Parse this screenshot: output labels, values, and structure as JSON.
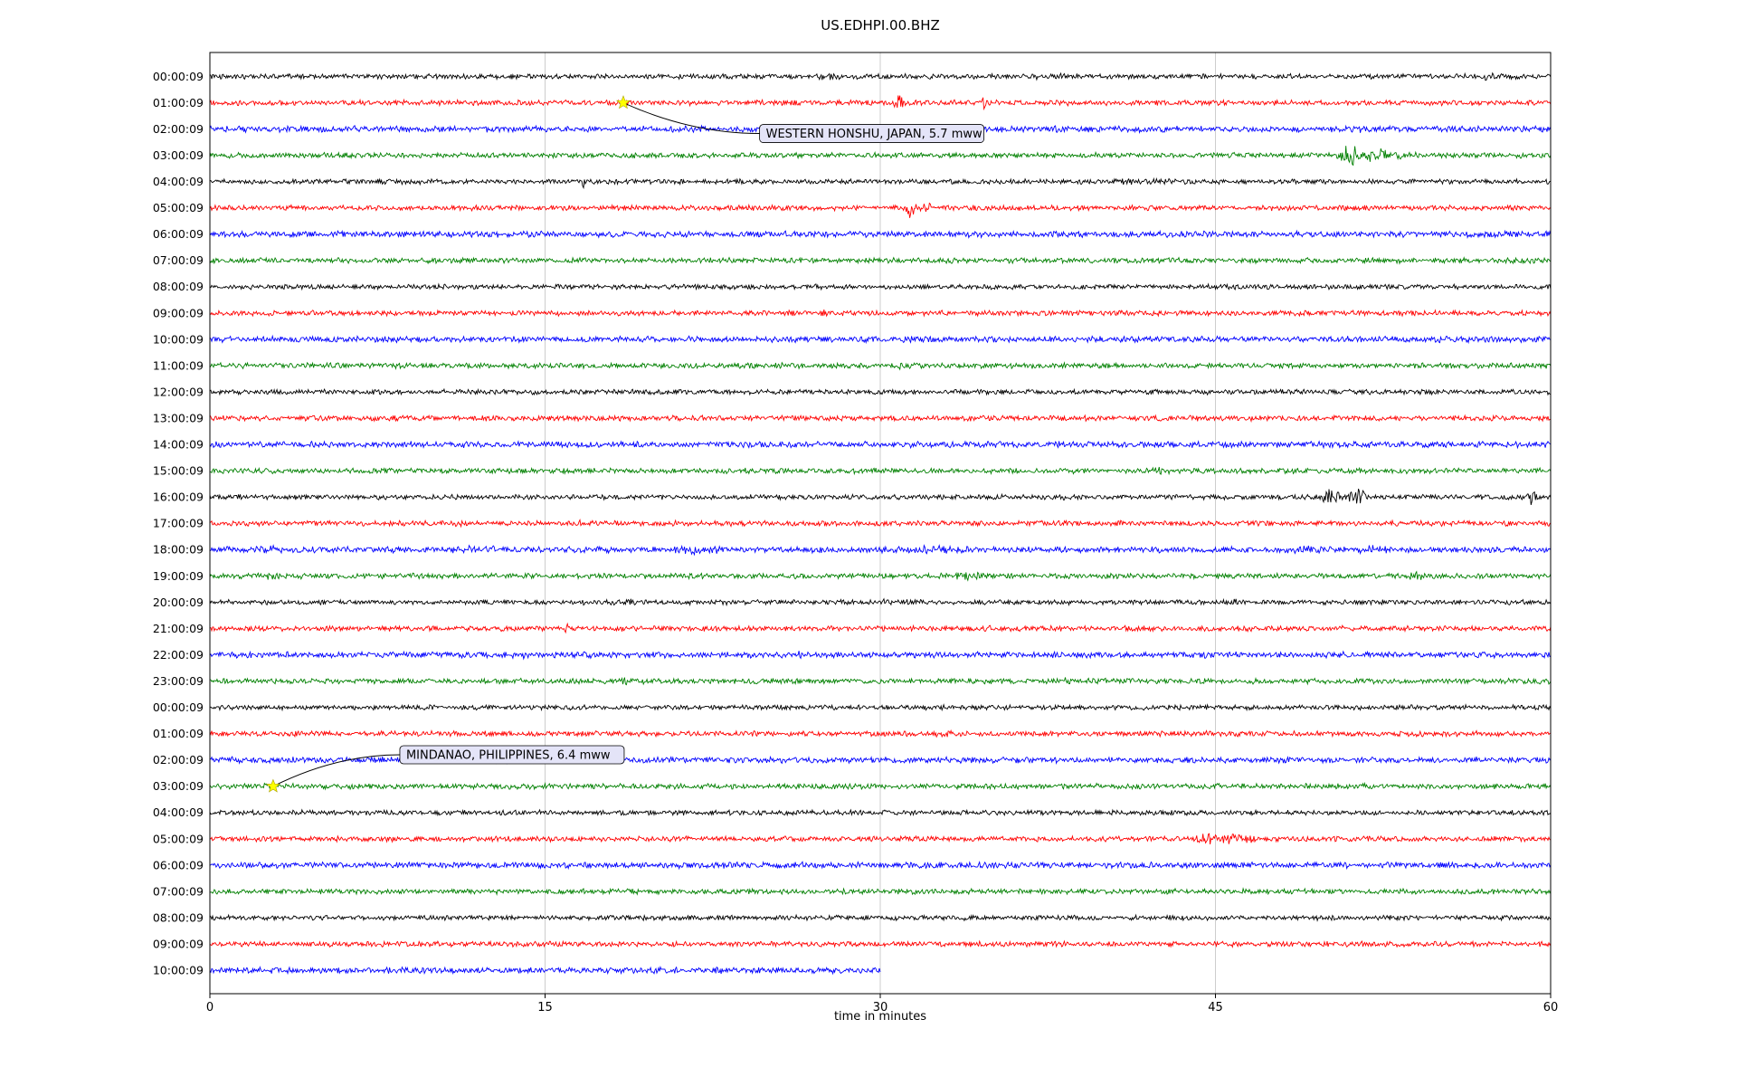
{
  "title": "US.EDHPI.00.BHZ",
  "chart_data": {
    "type": "line",
    "subtype": "seismogram-dayplot",
    "title": "US.EDHPI.00.BHZ",
    "xlabel": "time in minutes",
    "xlim": [
      0,
      60
    ],
    "xticks": [
      0,
      15,
      30,
      45,
      60
    ],
    "grid": "vertical-light-gray",
    "background_color": "#ffffff",
    "trace_color_cycle": [
      "#000000",
      "#ff0000",
      "#0000ff",
      "#008000"
    ],
    "rows": [
      {
        "label": "00:00:09",
        "color": "#000000",
        "bursts": [
          {
            "x": 27.5,
            "w": 1.2,
            "a": 2
          },
          {
            "x": 37.5,
            "w": 1.5,
            "a": 1.8
          },
          {
            "x": 57.5,
            "w": 1.2,
            "a": 2
          }
        ]
      },
      {
        "label": "01:00:09",
        "color": "#ff0000",
        "bursts": [
          {
            "x": 30.8,
            "w": 0.22,
            "a": 11
          },
          {
            "x": 34.6,
            "w": 0.18,
            "a": 6
          }
        ]
      },
      {
        "label": "02:00:09",
        "color": "#0000ff",
        "bursts": [
          {
            "x": 51.3,
            "w": 0.6,
            "a": 2.5
          }
        ]
      },
      {
        "label": "03:00:09",
        "color": "#008000",
        "bursts": [
          {
            "x": 51.0,
            "w": 0.45,
            "a": 14
          },
          {
            "x": 52.2,
            "w": 0.4,
            "a": 8
          },
          {
            "x": 53.3,
            "w": 0.7,
            "a": 3
          }
        ]
      },
      {
        "label": "04:00:09",
        "color": "#000000",
        "bursts": [
          {
            "x": 16.7,
            "w": 0.1,
            "a": 6
          },
          {
            "x": 42.5,
            "w": 1.4,
            "a": 2.2
          },
          {
            "x": 40.8,
            "w": 0.5,
            "a": 2
          }
        ]
      },
      {
        "label": "05:00:09",
        "color": "#ff0000",
        "bursts": [
          {
            "x": 31.3,
            "w": 0.35,
            "a": 9
          },
          {
            "x": 32.1,
            "w": 0.3,
            "a": 4
          }
        ]
      },
      {
        "label": "06:00:09",
        "color": "#0000ff",
        "bursts": []
      },
      {
        "label": "07:00:09",
        "color": "#008000",
        "bursts": []
      },
      {
        "label": "08:00:09",
        "color": "#000000",
        "bursts": []
      },
      {
        "label": "09:00:09",
        "color": "#ff0000",
        "bursts": [
          {
            "x": 27.5,
            "w": 0.8,
            "a": 1.5
          }
        ]
      },
      {
        "label": "10:00:09",
        "color": "#0000ff",
        "bursts": []
      },
      {
        "label": "11:00:09",
        "color": "#008000",
        "bursts": [
          {
            "x": 30.8,
            "w": 0.3,
            "a": 2.5
          }
        ]
      },
      {
        "label": "12:00:09",
        "color": "#000000",
        "bursts": []
      },
      {
        "label": "13:00:09",
        "color": "#ff0000",
        "bursts": []
      },
      {
        "label": "14:00:09",
        "color": "#0000ff",
        "bursts": []
      },
      {
        "label": "15:00:09",
        "color": "#008000",
        "bursts": [
          {
            "x": 42.3,
            "w": 0.5,
            "a": 2.5
          }
        ]
      },
      {
        "label": "16:00:09",
        "color": "#000000",
        "bursts": [
          {
            "x": 50.2,
            "w": 0.35,
            "a": 10
          },
          {
            "x": 51.4,
            "w": 0.45,
            "a": 7
          },
          {
            "x": 56.7,
            "w": 0.3,
            "a": 3
          },
          {
            "x": 59.2,
            "w": 0.25,
            "a": 8
          }
        ]
      },
      {
        "label": "17:00:09",
        "color": "#ff0000",
        "bursts": [
          {
            "x": 16.6,
            "w": 0.12,
            "a": 6
          }
        ]
      },
      {
        "label": "18:00:09",
        "color": "#0000ff",
        "bursts": [
          {
            "x": 2.5,
            "w": 0.9,
            "a": 2.5
          },
          {
            "x": 12,
            "w": 0.9,
            "a": 2
          },
          {
            "x": 22,
            "w": 1.1,
            "a": 3
          },
          {
            "x": 32.4,
            "w": 1.1,
            "a": 3.5
          },
          {
            "x": 49,
            "w": 0.9,
            "a": 2
          },
          {
            "x": 52,
            "w": 0.9,
            "a": 2.5
          }
        ]
      },
      {
        "label": "19:00:09",
        "color": "#008000",
        "bursts": [
          {
            "x": 3,
            "w": 0.9,
            "a": 2.5
          },
          {
            "x": 33.8,
            "w": 0.7,
            "a": 3
          },
          {
            "x": 44,
            "w": 0.5,
            "a": 2
          },
          {
            "x": 54,
            "w": 0.9,
            "a": 2.5
          }
        ]
      },
      {
        "label": "20:00:09",
        "color": "#000000",
        "bursts": [
          {
            "x": 18,
            "w": 1.3,
            "a": 2
          },
          {
            "x": 30.5,
            "w": 0.9,
            "a": 2
          },
          {
            "x": 41.8,
            "w": 0.6,
            "a": 2.5
          },
          {
            "x": 45.9,
            "w": 0.12,
            "a": 8
          }
        ]
      },
      {
        "label": "21:00:09",
        "color": "#ff0000",
        "bursts": [
          {
            "x": 15.9,
            "w": 0.13,
            "a": 6
          },
          {
            "x": 2,
            "w": 0.7,
            "a": 1.8
          }
        ]
      },
      {
        "label": "22:00:09",
        "color": "#0000ff",
        "bursts": [
          {
            "x": 14,
            "w": 0.9,
            "a": 1.8
          },
          {
            "x": 27,
            "w": 0.9,
            "a": 1.5
          }
        ]
      },
      {
        "label": "23:00:09",
        "color": "#008000",
        "bursts": [
          {
            "x": 18.5,
            "w": 0.15,
            "a": 4.5
          },
          {
            "x": 38.3,
            "w": 0.7,
            "a": 2.5
          }
        ]
      },
      {
        "label": "00:00:09",
        "color": "#000000",
        "bursts": [
          {
            "x": 14.4,
            "w": 0.12,
            "a": 5
          }
        ]
      },
      {
        "label": "01:00:09",
        "color": "#ff0000",
        "bursts": [
          {
            "x": 33,
            "w": 0.9,
            "a": 1.5
          }
        ]
      },
      {
        "label": "02:00:09",
        "color": "#0000ff",
        "bursts": []
      },
      {
        "label": "03:00:09",
        "color": "#008000",
        "bursts": []
      },
      {
        "label": "04:00:09",
        "color": "#000000",
        "bursts": []
      },
      {
        "label": "05:00:09",
        "color": "#ff0000",
        "bursts": [
          {
            "x": 44.6,
            "w": 0.45,
            "a": 7
          },
          {
            "x": 45.7,
            "w": 0.55,
            "a": 6
          },
          {
            "x": 46.6,
            "w": 0.35,
            "a": 3.5
          }
        ]
      },
      {
        "label": "06:00:09",
        "color": "#0000ff",
        "bursts": []
      },
      {
        "label": "07:00:09",
        "color": "#008000",
        "bursts": []
      },
      {
        "label": "08:00:09",
        "color": "#000000",
        "bursts": []
      },
      {
        "label": "09:00:09",
        "color": "#ff0000",
        "bursts": []
      },
      {
        "label": "10:00:09",
        "color": "#0000ff",
        "extent": 30,
        "bursts": []
      }
    ],
    "annotations": [
      {
        "text": "WESTERN HONSHU, JAPAN, 5.7 mww",
        "marker": "yellow-star",
        "marker_color": "#ffff00",
        "star_row": 1,
        "star_x_min": 18.5,
        "label_row": 2.17,
        "label_x_min": 24.6,
        "label_fill": "#e4e4f8"
      },
      {
        "text": "MINDANAO, PHILIPPINES, 6.4 mww",
        "marker": "yellow-star",
        "marker_color": "#ffff00",
        "star_row": 27,
        "star_x_min": 2.83,
        "label_row": 25.8,
        "label_x_min": 8.5,
        "label_fill": "#e4e4f8"
      }
    ]
  }
}
